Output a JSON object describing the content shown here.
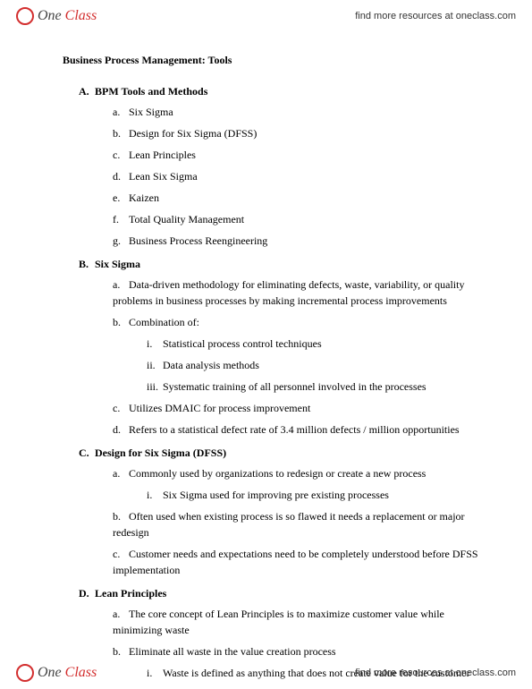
{
  "brand": {
    "one": "One",
    "class": "Class"
  },
  "resource_text": "find more resources at oneclass.com",
  "title": "Business Process Management: Tools",
  "sections": [
    {
      "marker": "A.",
      "heading": "BPM Tools and Methods",
      "items": [
        {
          "marker": "a.",
          "text": "Six Sigma"
        },
        {
          "marker": "b.",
          "text": "Design for Six Sigma (DFSS)"
        },
        {
          "marker": "c.",
          "text": "Lean Principles"
        },
        {
          "marker": "d.",
          "text": "Lean Six Sigma"
        },
        {
          "marker": "e.",
          "text": "Kaizen"
        },
        {
          "marker": "f.",
          "text": "Total Quality Management"
        },
        {
          "marker": "g.",
          "text": "Business Process Reengineering"
        }
      ]
    },
    {
      "marker": "B.",
      "heading": "Six Sigma",
      "items": [
        {
          "marker": "a.",
          "text": "Data-driven methodology for eliminating defects, waste, variability, or quality problems in business processes by making incremental process improvements"
        },
        {
          "marker": "b.",
          "text": "Combination of:",
          "sub": [
            {
              "marker": "i.",
              "text": "Statistical process control techniques"
            },
            {
              "marker": "ii.",
              "text": "Data analysis methods"
            },
            {
              "marker": "iii.",
              "text": "Systematic training of all personnel involved in the processes"
            }
          ]
        },
        {
          "marker": "c.",
          "text": "Utilizes DMAIC for process improvement"
        },
        {
          "marker": "d.",
          "text": "Refers to a statistical defect rate of 3.4 million defects / million opportunities"
        }
      ]
    },
    {
      "marker": "C.",
      "heading": "Design for Six Sigma (DFSS)",
      "items": [
        {
          "marker": "a.",
          "text": "Commonly used by organizations to redesign or create a new process",
          "sub": [
            {
              "marker": "i.",
              "text": "Six Sigma used for improving pre existing processes"
            }
          ]
        },
        {
          "marker": "b.",
          "text": "Often used when existing process is so flawed it needs a replacement or major redesign"
        },
        {
          "marker": "c.",
          "text": "Customer needs and expectations need to be completely understood before DFSS implementation"
        }
      ]
    },
    {
      "marker": "D.",
      "heading": "Lean Principles",
      "items": [
        {
          "marker": "a.",
          "text": "The core concept of Lean Principles is to maximize customer value while minimizing waste"
        },
        {
          "marker": "b.",
          "text": "Eliminate all waste in the value creation process",
          "sub": [
            {
              "marker": "i.",
              "text": "Waste is defined as anything that does not create value for the customer"
            }
          ]
        }
      ]
    }
  ]
}
